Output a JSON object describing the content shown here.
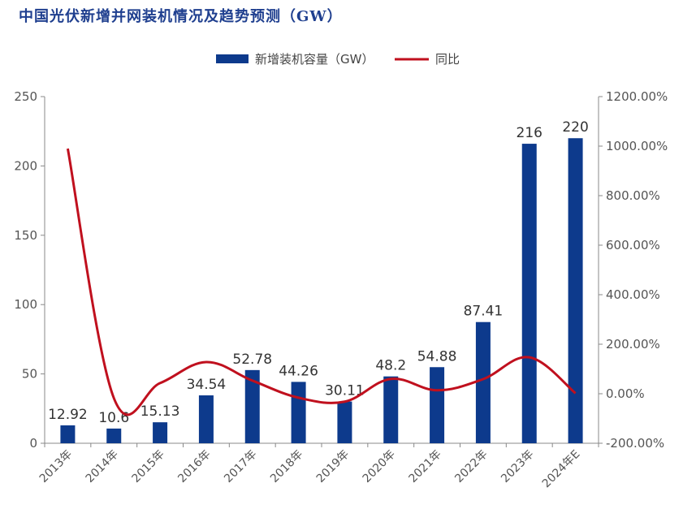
{
  "title": "中国光伏新增并网装机情况及趋势预测（GW）",
  "colors": {
    "bar": "#0d3a8c",
    "line": "#c0101e",
    "title": "#1f3f8f",
    "axis": "#888888"
  },
  "legend": {
    "bar_label": "新增装机容量（GW）",
    "line_label": "同比"
  },
  "chart_data": {
    "type": "bar+line",
    "categories": [
      "2013年",
      "2014年",
      "2015年",
      "2016年",
      "2017年",
      "2018年",
      "2019年",
      "2020年",
      "2021年",
      "2022年",
      "2023年",
      "2024年E"
    ],
    "series": [
      {
        "name": "新增装机容量（GW）",
        "type": "bar",
        "axis": "left",
        "values": [
          12.92,
          10.6,
          15.13,
          34.54,
          52.78,
          44.26,
          30.11,
          48.2,
          54.88,
          87.41,
          216,
          220
        ],
        "labels": [
          "12.92",
          "10.6",
          "15.13",
          "34.54",
          "52.78",
          "44.26",
          "30.11",
          "48.2",
          "54.88",
          "87.41",
          "216",
          "220"
        ]
      },
      {
        "name": "同比",
        "type": "line",
        "axis": "right",
        "values": [
          990,
          -18,
          43,
          128,
          53,
          -16,
          -32,
          60,
          14,
          59,
          147,
          2
        ]
      }
    ],
    "y_left": {
      "min": 0,
      "max": 250,
      "ticks": [
        "0",
        "50",
        "100",
        "150",
        "200",
        "250"
      ]
    },
    "y_right": {
      "min": -200,
      "max": 1200,
      "ticks": [
        "-200.00%",
        "0.00%",
        "200.00%",
        "400.00%",
        "600.00%",
        "800.00%",
        "1000.00%",
        "1200.00%"
      ]
    },
    "legend_position": "top-center",
    "grid": false
  }
}
